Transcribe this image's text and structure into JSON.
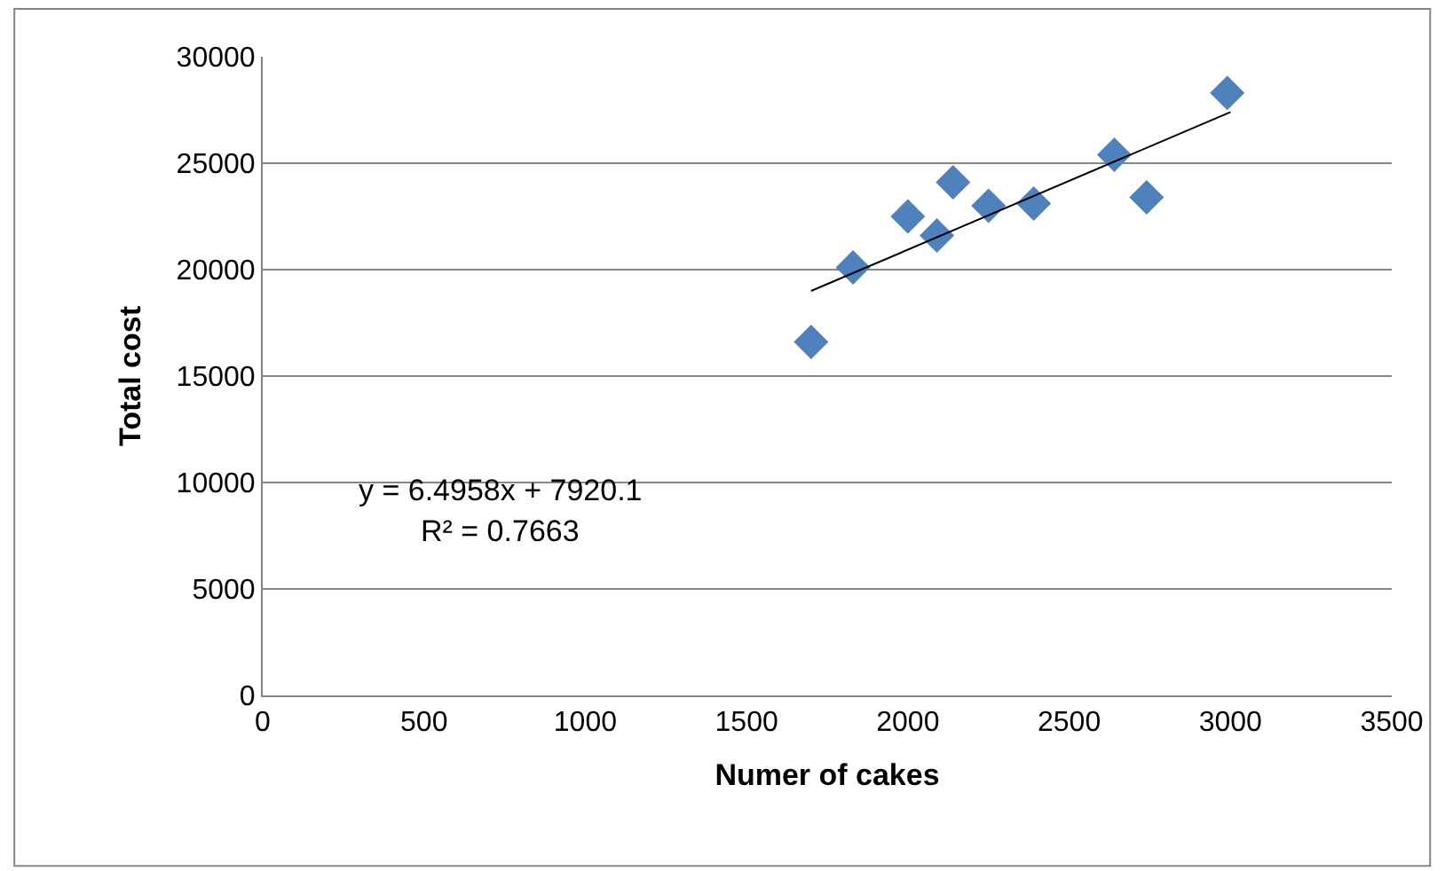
{
  "chart_data": {
    "type": "scatter",
    "xlabel": "Numer of cakes",
    "ylabel": "Total cost",
    "xlim": [
      0,
      3500
    ],
    "xticks": [
      0,
      500,
      1000,
      1500,
      2000,
      2500,
      3000,
      3500
    ],
    "ylim": [
      0,
      30000
    ],
    "yticks": [
      0,
      5000,
      10000,
      15000,
      20000,
      25000,
      30000
    ],
    "grid": "y",
    "marker": "diamond",
    "series": [
      {
        "color": "#4f81bd",
        "x": [
          1700,
          1830,
          2000,
          2090,
          2140,
          2250,
          2390,
          2640,
          2740,
          2990
        ],
        "values": [
          16600,
          20100,
          22500,
          21600,
          24100,
          23000,
          23100,
          25400,
          23400,
          28300
        ]
      },
      {
        "type": "line",
        "color": "#000000",
        "line_style": "solid",
        "marker": "none",
        "x": [
          1700,
          3000
        ],
        "values": [
          19000,
          27400
        ]
      }
    ],
    "annotations": [
      "y = 6.4958x + 7920.1",
      "R² = 0.7663"
    ]
  }
}
